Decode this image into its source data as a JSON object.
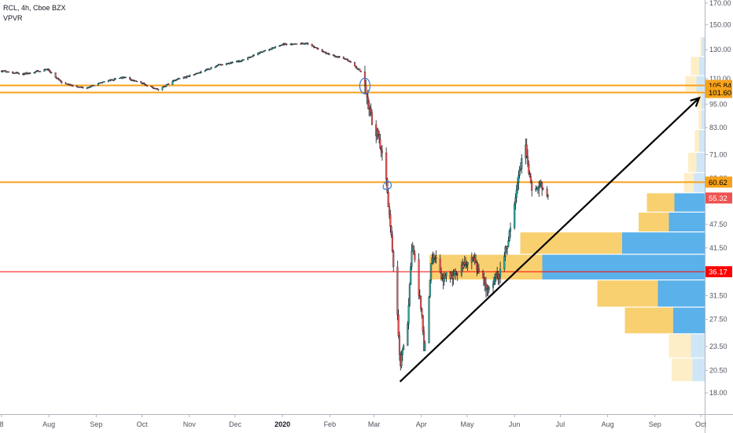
{
  "header": {
    "symbol_line": "RCL, 4h, Cboe BZX",
    "indicator": "VPVR"
  },
  "colors": {
    "up_candle": "#26a69a",
    "down_candle": "#ef5350",
    "candle_wick": "#131722",
    "orange_level": "#f7a21b",
    "red_level": "#ff0000",
    "vp_up": "#5bb1ea",
    "vp_down": "#f9d070",
    "vp_up_faded": "#cfe6f7",
    "vp_down_faded": "#fdeec7",
    "trendline": "#000000",
    "axis_text": "#50535e"
  },
  "chart_data": {
    "type": "candlestick",
    "y_axis": {
      "scale": "log",
      "range": [
        16.5,
        175
      ],
      "ticks": [
        "170.00",
        "150.00",
        "130.00",
        "110.00",
        "95.00",
        "83.00",
        "71.00",
        "62.00",
        "47.50",
        "41.50",
        "31.50",
        "27.50",
        "23.50",
        "20.50",
        "18.00"
      ]
    },
    "x_axis": {
      "range": [
        "2019-06-28",
        "2020-10-05"
      ],
      "ticks": [
        {
          "label": "8",
          "date": "2019-07-01",
          "bold": false
        },
        {
          "label": "Aug",
          "date": "2019-08-01",
          "bold": false
        },
        {
          "label": "Sep",
          "date": "2019-09-01",
          "bold": false
        },
        {
          "label": "Oct",
          "date": "2019-10-01",
          "bold": false
        },
        {
          "label": "Nov",
          "date": "2019-11-01",
          "bold": false
        },
        {
          "label": "Dec",
          "date": "2019-12-01",
          "bold": false
        },
        {
          "label": "2020",
          "date": "2020-01-01",
          "bold": true
        },
        {
          "label": "Feb",
          "date": "2020-02-01",
          "bold": false
        },
        {
          "label": "Mar",
          "date": "2020-03-01",
          "bold": false
        },
        {
          "label": "Apr",
          "date": "2020-04-01",
          "bold": false
        },
        {
          "label": "May",
          "date": "2020-05-01",
          "bold": false
        },
        {
          "label": "Jun",
          "date": "2020-06-01",
          "bold": false
        },
        {
          "label": "Jul",
          "date": "2020-07-01",
          "bold": false
        },
        {
          "label": "Aug",
          "date": "2020-08-01",
          "bold": false
        },
        {
          "label": "Sep",
          "date": "2020-09-01",
          "bold": false
        },
        {
          "label": "Oct",
          "date": "2020-10-01",
          "bold": false
        }
      ]
    },
    "close_path": [
      [
        "2019-07-01",
        115
      ],
      [
        "2019-07-15",
        113
      ],
      [
        "2019-07-31",
        116
      ],
      [
        "2019-08-10",
        107
      ],
      [
        "2019-08-25",
        104
      ],
      [
        "2019-09-05",
        108
      ],
      [
        "2019-09-20",
        111
      ],
      [
        "2019-10-01",
        107
      ],
      [
        "2019-10-12",
        103
      ],
      [
        "2019-10-22",
        109
      ],
      [
        "2019-11-05",
        113
      ],
      [
        "2019-11-20",
        119
      ],
      [
        "2019-12-05",
        122
      ],
      [
        "2019-12-20",
        129
      ],
      [
        "2020-01-01",
        134
      ],
      [
        "2020-01-17",
        135
      ],
      [
        "2020-01-30",
        127
      ],
      [
        "2020-02-12",
        123
      ],
      [
        "2020-02-21",
        115
      ],
      [
        "2020-02-24",
        106
      ],
      [
        "2020-02-28",
        88
      ],
      [
        "2020-03-04",
        78
      ],
      [
        "2020-03-09",
        62
      ],
      [
        "2020-03-12",
        45
      ],
      [
        "2020-03-16",
        30
      ],
      [
        "2020-03-18",
        21
      ],
      [
        "2020-03-23",
        27
      ],
      [
        "2020-03-26",
        43
      ],
      [
        "2020-04-01",
        29
      ],
      [
        "2020-04-03",
        22.5
      ],
      [
        "2020-04-08",
        40
      ],
      [
        "2020-04-15",
        35
      ],
      [
        "2020-04-25",
        36
      ],
      [
        "2020-05-05",
        39
      ],
      [
        "2020-05-14",
        33
      ],
      [
        "2020-05-22",
        36
      ],
      [
        "2020-05-29",
        45
      ],
      [
        "2020-06-04",
        63
      ],
      [
        "2020-06-08",
        76
      ],
      [
        "2020-06-12",
        58
      ],
      [
        "2020-06-18",
        60
      ],
      [
        "2020-06-23",
        55.3
      ]
    ],
    "horizontal_levels": [
      {
        "price": 105.84,
        "label": "105.84",
        "color": "orange"
      },
      {
        "price": 101.6,
        "label": "101.60",
        "color": "orange"
      },
      {
        "price": 60.62,
        "label": "60.62",
        "color": "orange"
      },
      {
        "price": 36.17,
        "label": "36.17",
        "color": "red"
      }
    ],
    "last_price": {
      "value": 55.32,
      "label": "55.32"
    },
    "trendline": {
      "start": [
        "2020-03-18",
        19.2
      ],
      "end": [
        "2020-09-30",
        98.5
      ],
      "arrow": true
    },
    "highlights": [
      {
        "date": "2020-02-24",
        "price": 105.5
      },
      {
        "date": "2020-03-10",
        "price": 59.5
      }
    ],
    "volume_profile": [
      {
        "from": 125,
        "to": 140,
        "up": 0.01,
        "down": 0.006,
        "faded": true
      },
      {
        "from": 112,
        "to": 125,
        "up": 0.02,
        "down": 0.03,
        "faded": true
      },
      {
        "from": 102,
        "to": 112,
        "up": 0.03,
        "down": 0.04,
        "faded": true
      },
      {
        "from": 92,
        "to": 102,
        "up": 0.012,
        "down": 0.014,
        "faded": true
      },
      {
        "from": 82,
        "to": 92,
        "up": 0.012,
        "down": 0.01,
        "faded": true
      },
      {
        "from": 72,
        "to": 82,
        "up": 0.02,
        "down": 0.016,
        "faded": true
      },
      {
        "from": 64,
        "to": 72,
        "up": 0.03,
        "down": 0.03,
        "faded": true
      },
      {
        "from": 57,
        "to": 64,
        "up": 0.04,
        "down": 0.035,
        "faded": true
      },
      {
        "from": 51,
        "to": 57,
        "up": 0.11,
        "down": 0.1,
        "faded": false
      },
      {
        "from": 45.5,
        "to": 51,
        "up": 0.13,
        "down": 0.11,
        "faded": false
      },
      {
        "from": 40,
        "to": 45.5,
        "up": 0.3,
        "down": 0.37,
        "faded": false
      },
      {
        "from": 34.5,
        "to": 40,
        "up": 0.59,
        "down": 0.41,
        "faded": false
      },
      {
        "from": 29.5,
        "to": 34.5,
        "up": 0.17,
        "down": 0.22,
        "faded": false
      },
      {
        "from": 25.3,
        "to": 29.5,
        "up": 0.115,
        "down": 0.175,
        "faded": false
      },
      {
        "from": 22,
        "to": 25.3,
        "up": 0.05,
        "down": 0.08,
        "faded": true
      },
      {
        "from": 19.2,
        "to": 22,
        "up": 0.045,
        "down": 0.075,
        "faded": true
      }
    ]
  }
}
